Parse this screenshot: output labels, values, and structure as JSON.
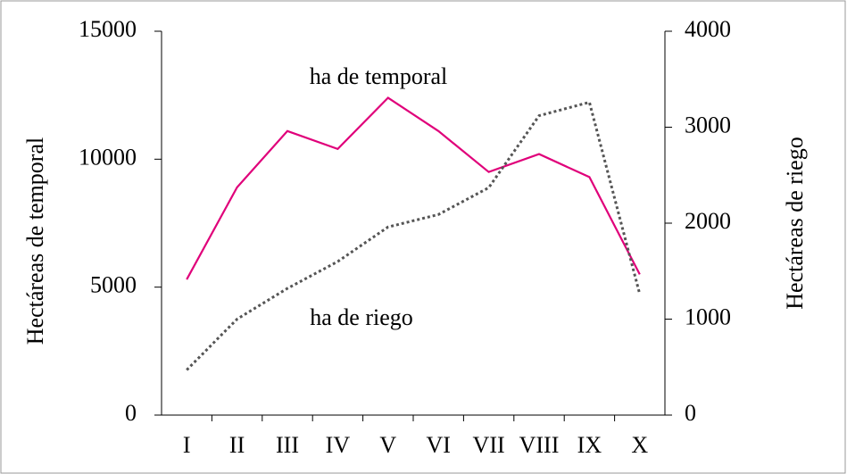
{
  "chart_data": {
    "type": "line",
    "categories": [
      "I",
      "II",
      "III",
      "IV",
      "V",
      "VI",
      "VII",
      "VIII",
      "IX",
      "X"
    ],
    "series": [
      {
        "name": "ha de temporal",
        "color": "#e0007a",
        "values": [
          5300,
          8900,
          11100,
          10400,
          12400,
          11100,
          9500,
          10200,
          9300,
          5500
        ]
      },
      {
        "name": "ha de riego",
        "color": "#555555",
        "axis": "y2",
        "values": [
          470,
          1000,
          1320,
          1600,
          1960,
          2090,
          2370,
          3120,
          3260,
          1260
        ]
      }
    ],
    "ylabel": "Hectáreas de temporal",
    "y2label": "Hectáreas de riego",
    "ylim": [
      0,
      15000
    ],
    "yticks": [
      0,
      5000,
      10000,
      15000
    ],
    "y2lim": [
      0,
      4000
    ],
    "y2ticks": [
      0,
      1000,
      2000,
      3000,
      4000
    ]
  }
}
